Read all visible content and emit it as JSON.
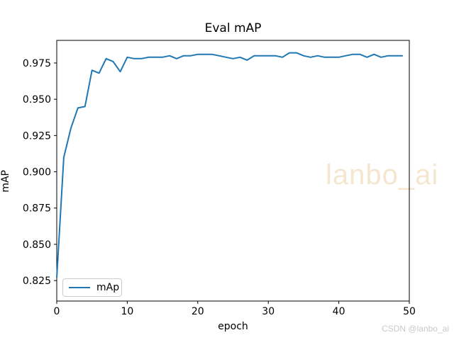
{
  "figure": {
    "title": "Eval mAP",
    "xlabel": "epoch",
    "ylabel": "mAP"
  },
  "legend": {
    "label": "mAp"
  },
  "watermarks": {
    "center": "lanbo_ai",
    "corner": "CSDN @lanbo_ai"
  },
  "colors": {
    "line": "#1f77b4",
    "axis": "#000000",
    "tick_label": "#000000",
    "legend_border": "#cccccc",
    "watermark_center": "#f5e6cf",
    "watermark_corner": "#c9c9c9"
  },
  "chart_data": {
    "type": "line",
    "title": "Eval mAP",
    "xlabel": "epoch",
    "ylabel": "mAP",
    "xlim": [
      0,
      50
    ],
    "ylim": [
      0.8109,
      0.9906
    ],
    "x_ticks": [
      0,
      10,
      20,
      30,
      40,
      50
    ],
    "y_ticks": [
      "0.825",
      "0.850",
      "0.875",
      "0.900",
      "0.925",
      "0.950",
      "0.975"
    ],
    "grid": false,
    "legend_position": "lower-left",
    "series": [
      {
        "name": "mAp",
        "color": "#1f77b4",
        "x": [
          0,
          1,
          2,
          3,
          4,
          5,
          6,
          7,
          8,
          9,
          10,
          11,
          12,
          13,
          14,
          15,
          16,
          17,
          18,
          19,
          20,
          21,
          22,
          23,
          24,
          25,
          26,
          27,
          28,
          29,
          30,
          31,
          32,
          33,
          34,
          35,
          36,
          37,
          38,
          39,
          40,
          41,
          42,
          43,
          44,
          45,
          46,
          47,
          48,
          49
        ],
        "y": [
          0.827,
          0.91,
          0.93,
          0.944,
          0.945,
          0.97,
          0.968,
          0.978,
          0.976,
          0.969,
          0.979,
          0.978,
          0.978,
          0.979,
          0.979,
          0.979,
          0.98,
          0.978,
          0.98,
          0.98,
          0.981,
          0.981,
          0.981,
          0.98,
          0.979,
          0.978,
          0.979,
          0.977,
          0.98,
          0.98,
          0.98,
          0.98,
          0.979,
          0.982,
          0.982,
          0.98,
          0.979,
          0.98,
          0.979,
          0.979,
          0.979,
          0.98,
          0.981,
          0.981,
          0.979,
          0.981,
          0.979,
          0.98,
          0.98,
          0.98
        ]
      }
    ]
  }
}
